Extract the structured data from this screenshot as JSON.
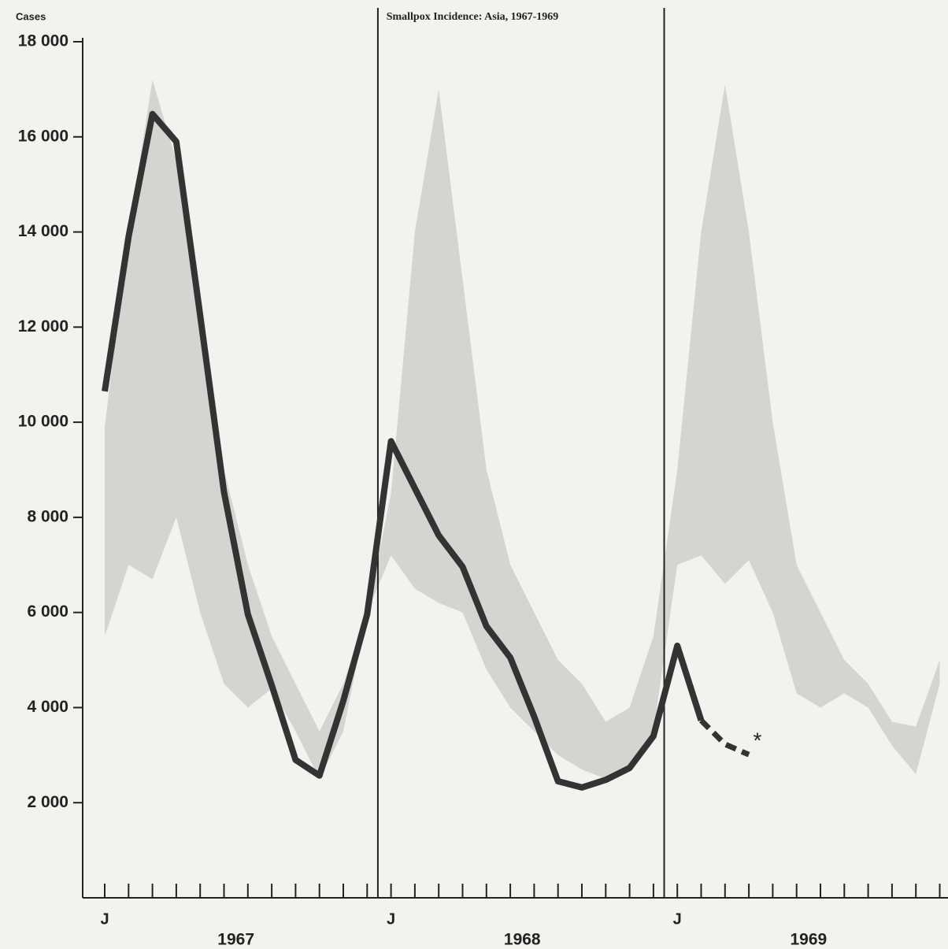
{
  "chart_data": {
    "type": "line",
    "title": "Smallpox Incidence: Asia, 1967-1969",
    "y_label": "Cases",
    "categories": [
      "J",
      null,
      null,
      null,
      null,
      null,
      null,
      null,
      null,
      null,
      null,
      null,
      "J",
      null,
      null,
      null,
      null,
      null,
      null,
      null,
      null,
      null,
      null,
      null,
      "J",
      null,
      null,
      null,
      null,
      null,
      null,
      null,
      null,
      null,
      null,
      null
    ],
    "years": [
      "1967",
      "1968",
      "1969"
    ],
    "ylim": [
      0,
      18000
    ],
    "yticks": [
      {
        "value": 2000,
        "label": "2 000"
      },
      {
        "value": 4000,
        "label": "4 000"
      },
      {
        "value": 6000,
        "label": "6 000"
      },
      {
        "value": 8000,
        "label": "8 000"
      },
      {
        "value": 10000,
        "label": "10 000"
      },
      {
        "value": 12000,
        "label": "12 000"
      },
      {
        "value": 14000,
        "label": "14 000"
      },
      {
        "value": 16000,
        "label": "16 000"
      },
      {
        "value": 18000,
        "label": "18 000"
      }
    ],
    "range": {
      "color": "#c9c9c6",
      "upper": [
        9900,
        14000,
        17200,
        15500,
        12000,
        9000,
        7000,
        5500,
        4500,
        3500,
        4500,
        6000,
        8500,
        14000,
        17000,
        13000,
        9000,
        7000,
        6000,
        5000,
        4500,
        3700,
        4000,
        5500,
        9000,
        14000,
        17100,
        14000,
        10000,
        7000,
        6000,
        5000,
        4500,
        3700,
        3600,
        5000
      ],
      "lower": [
        5500,
        7000,
        6700,
        8000,
        6000,
        4500,
        4000,
        4400,
        3500,
        2500,
        3500,
        6000,
        7200,
        6500,
        6200,
        6000,
        4800,
        4000,
        3500,
        3000,
        2700,
        2500,
        2800,
        3500,
        7000,
        7200,
        6600,
        7100,
        6000,
        4300,
        4000,
        4300,
        4000,
        3200,
        2600,
        4500
      ]
    },
    "series": [
      {
        "color": "#333333",
        "style": "solid",
        "values": [
          10650,
          13900,
          16480,
          15900,
          12250,
          8530,
          5960,
          4470,
          2900,
          2570,
          4140,
          5960,
          9600,
          8610,
          7620,
          6960,
          5710,
          5050,
          3810,
          2450,
          2320,
          2480,
          2730,
          3400,
          5300,
          3730,
          null,
          null,
          null,
          null,
          null,
          null,
          null,
          null,
          null,
          null
        ]
      },
      {
        "color": "#333333",
        "style": "dashed",
        "values": [
          null,
          null,
          null,
          null,
          null,
          null,
          null,
          null,
          null,
          null,
          null,
          null,
          null,
          null,
          null,
          null,
          null,
          null,
          null,
          null,
          null,
          null,
          null,
          null,
          null,
          3730,
          3230,
          3010,
          null,
          null,
          null,
          null,
          null,
          null,
          null,
          null
        ]
      }
    ],
    "annotation": "*"
  }
}
